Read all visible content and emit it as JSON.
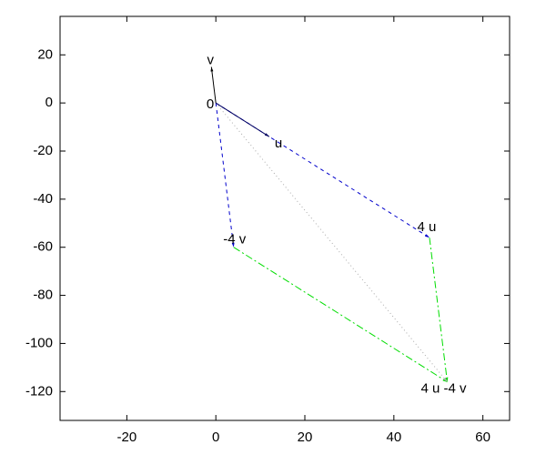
{
  "chart_data": {
    "type": "vector",
    "xlim": [
      -35,
      66
    ],
    "ylim": [
      -132,
      36
    ],
    "xticks": [
      -20,
      0,
      20,
      40,
      60
    ],
    "yticks": [
      20,
      0,
      -20,
      -40,
      -60,
      -80,
      -100,
      -120
    ],
    "grid": false,
    "points": [
      {
        "label": "0",
        "x": 0,
        "y": 0
      },
      {
        "label": "v",
        "x": -1,
        "y": 15
      },
      {
        "label": "u",
        "x": 12,
        "y": -14
      },
      {
        "label": "4 u",
        "x": 48,
        "y": -56
      },
      {
        "label": "-4 v",
        "x": 4,
        "y": -60
      },
      {
        "label": "4 u -4 v",
        "x": 52,
        "y": -116
      }
    ],
    "lines": [
      {
        "color": "#0000cc",
        "dash": "4,4",
        "arrow": true,
        "x": [
          0,
          48
        ],
        "y": [
          0,
          -56
        ]
      },
      {
        "color": "#0000cc",
        "dash": "4,4",
        "arrow": true,
        "x": [
          0,
          4
        ],
        "y": [
          0,
          -60
        ]
      },
      {
        "color": "#00dd00",
        "dash": "8,3,2,3",
        "arrow": true,
        "x": [
          4,
          52
        ],
        "y": [
          -60,
          -116
        ]
      },
      {
        "color": "#00dd00",
        "dash": "8,3,2,3",
        "arrow": true,
        "x": [
          48,
          52
        ],
        "y": [
          -56,
          -116
        ]
      },
      {
        "color": "#aaaaaa",
        "dash": "1,3",
        "arrow": true,
        "x": [
          0,
          52
        ],
        "y": [
          0,
          -116
        ]
      },
      {
        "color": "#000060",
        "dash": "",
        "arrow": true,
        "x": [
          0,
          12
        ],
        "y": [
          0,
          -14
        ]
      },
      {
        "color": "#000000",
        "dash": "",
        "arrow": true,
        "x": [
          0,
          -1
        ],
        "y": [
          0,
          15
        ]
      }
    ]
  }
}
